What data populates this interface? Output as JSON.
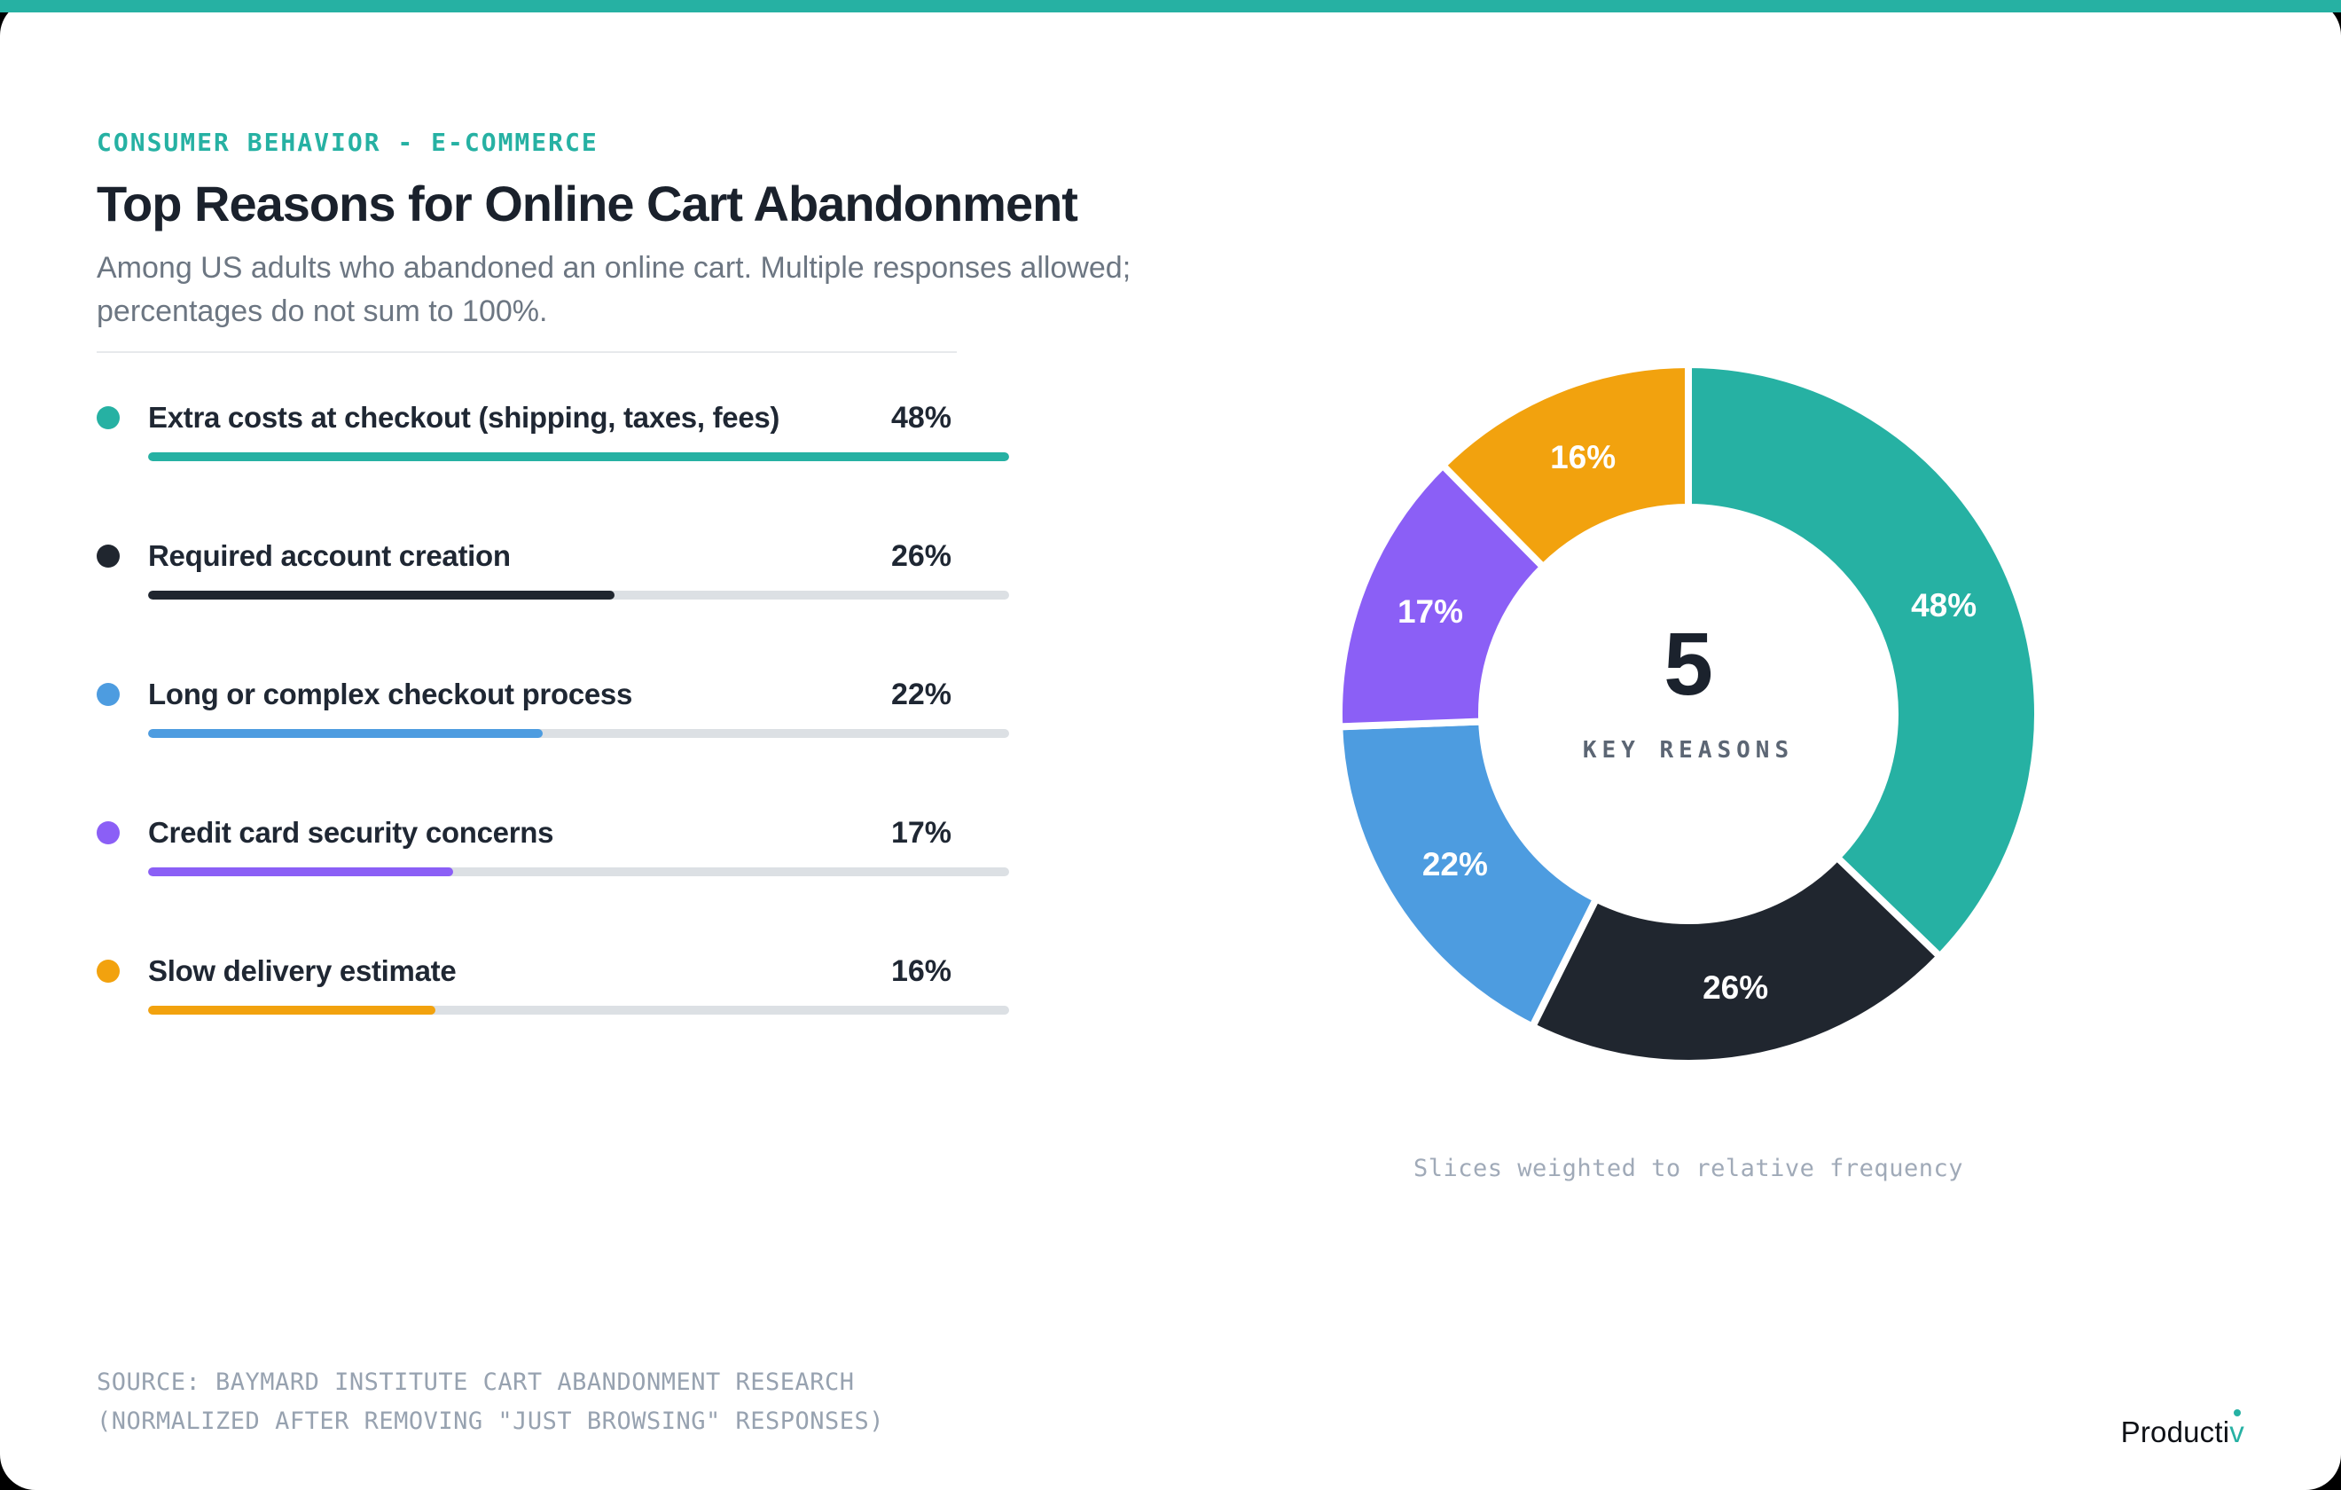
{
  "page": {
    "background": "#000000",
    "card_background": "#FFFFFF",
    "accent_color": "#26B1A3"
  },
  "header": {
    "eyebrow": "CONSUMER BEHAVIOR - E-COMMERCE",
    "title": "Top Reasons for Online Cart Abandonment",
    "subtitle_line1": "Among US adults who abandoned an online cart. Multiple responses allowed;",
    "subtitle_line2": "percentages do not sum to 100%."
  },
  "chart_data": {
    "type": "pie",
    "subtype": "donut-with-bar-list",
    "title": "Top Reasons for Online Cart Abandonment",
    "categories": [
      "Extra costs at checkout (shipping, taxes, fees)",
      "Required account creation",
      "Long or complex checkout process",
      "Credit card security concerns",
      "Slow delivery estimate"
    ],
    "values": [
      48,
      26,
      22,
      17,
      16
    ],
    "value_labels": [
      "48%",
      "26%",
      "22%",
      "17%",
      "16%"
    ],
    "colors": [
      "#26B1A3",
      "#20262F",
      "#4D9CE0",
      "#8B5FF6",
      "#F2A20E"
    ],
    "unit": "%",
    "legend_position": "left-list",
    "donut": {
      "center_value": "5",
      "center_label": "KEY REASONS",
      "start_angle_deg": 0,
      "direction": "clockwise",
      "slice_weighting": "relative frequency (value / sum of values)"
    },
    "bars": {
      "normalized_to_value": 48,
      "track_color": "#DCE0E4"
    },
    "caption": "Slices weighted to relative frequency"
  },
  "footer": {
    "source_line1": "SOURCE: BAYMARD INSTITUTE CART ABANDONMENT RESEARCH",
    "source_line2": "(NORMALIZED AFTER REMOVING \"JUST BROWSING\" RESPONSES)",
    "logo_main": "Producti",
    "logo_accent": "v"
  }
}
